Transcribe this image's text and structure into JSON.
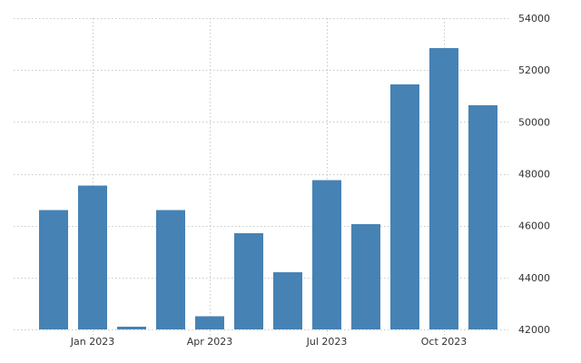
{
  "chart_data": {
    "type": "bar",
    "title": "",
    "xlabel": "",
    "ylabel": "",
    "x": [
      "2022-12",
      "2023-01",
      "2023-02",
      "2023-03",
      "2023-04",
      "2023-05",
      "2023-06",
      "2023-07",
      "2023-08",
      "2023-09",
      "2023-10",
      "2023-11"
    ],
    "values": [
      46600,
      47550,
      42100,
      46600,
      42500,
      45700,
      44200,
      47750,
      46050,
      51450,
      52850,
      50650
    ],
    "ylim": [
      42000,
      54000
    ],
    "y_ticks": [
      "42000",
      "44000",
      "46000",
      "48000",
      "50000",
      "52000",
      "54000"
    ],
    "x_tick_labels": [
      {
        "label": "Jan 2023",
        "at": "2023-01"
      },
      {
        "label": "Apr 2023",
        "at": "2023-04"
      },
      {
        "label": "Jul 2023",
        "at": "2023-07"
      },
      {
        "label": "Oct 2023",
        "at": "2023-10"
      }
    ],
    "y_axis_position": "right",
    "grid": true,
    "legend": "none",
    "bar_color": "#4682b4"
  }
}
